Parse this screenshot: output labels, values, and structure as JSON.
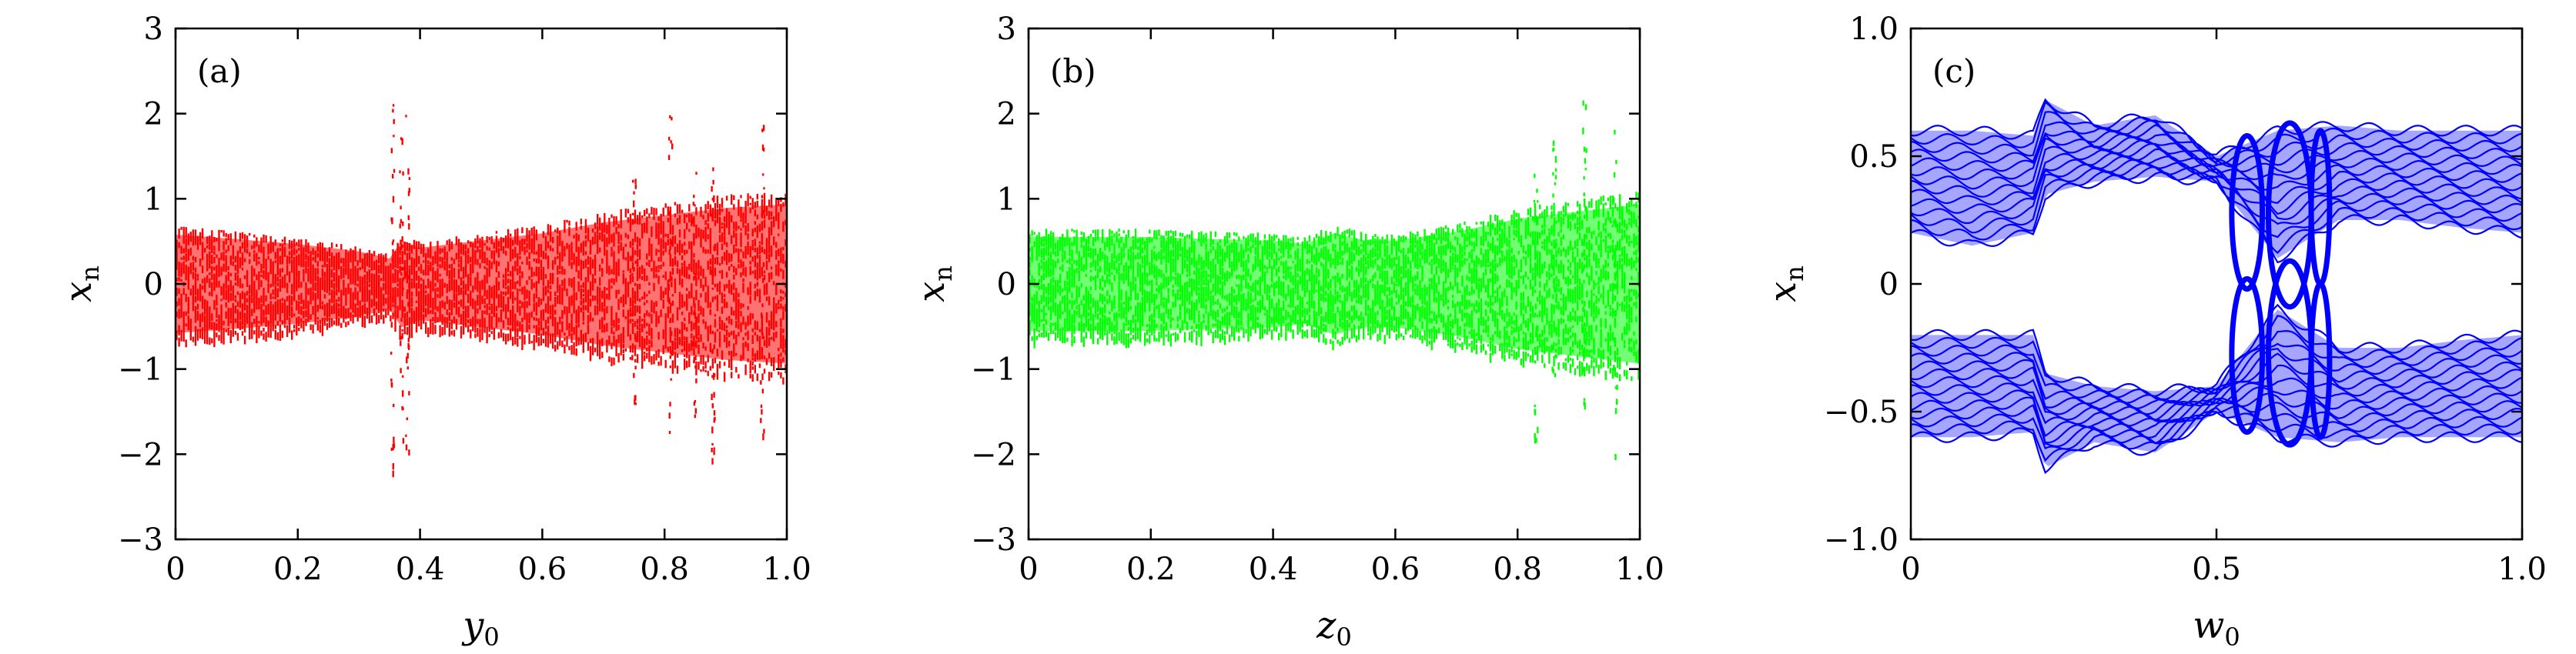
{
  "chart_data": [
    {
      "type": "scatter",
      "panel_label": "(a)",
      "xlabel": "y",
      "xlabel_sub": "0",
      "ylabel": "x",
      "ylabel_sub": "n",
      "xlim": [
        0,
        1.0
      ],
      "ylim": [
        -3,
        3
      ],
      "xticks": [
        0,
        0.2,
        0.4,
        0.6,
        0.8,
        1.0
      ],
      "xtick_labels": [
        "0",
        "0.2",
        "0.4",
        "0.6",
        "0.8",
        "1.0"
      ],
      "yticks": [
        -3,
        -2,
        -1,
        0,
        1,
        2,
        3
      ],
      "ytick_labels": [
        "−3",
        "−2",
        "−1",
        "0",
        "1",
        "2",
        "3"
      ],
      "color": "#ff0000",
      "grid": false,
      "envelope": {
        "x": [
          0,
          0.1,
          0.2,
          0.3,
          0.35,
          0.37,
          0.4,
          0.5,
          0.6,
          0.7,
          0.8,
          0.9,
          1.0
        ],
        "upper": [
          0.68,
          0.62,
          0.55,
          0.45,
          0.35,
          0.6,
          0.5,
          0.6,
          0.7,
          0.85,
          0.95,
          1.05,
          1.1
        ],
        "lower": [
          -0.68,
          -0.62,
          -0.55,
          -0.45,
          -0.35,
          -0.6,
          -0.5,
          -0.6,
          -0.7,
          -0.85,
          -0.95,
          -1.05,
          -1.1
        ]
      },
      "outliers": [
        {
          "x": 0.355,
          "y_min": -2.2,
          "y_max": 2.2
        },
        {
          "x": 0.37,
          "y_min": -2.1,
          "y_max": 2.0
        },
        {
          "x": 0.38,
          "y_min": -2.1,
          "y_max": 2.15
        },
        {
          "x": 0.75,
          "y_min": -1.5,
          "y_max": 1.3
        },
        {
          "x": 0.81,
          "y_min": -2.05,
          "y_max": 2.05
        },
        {
          "x": 0.85,
          "y_min": -1.6,
          "y_max": 1.7
        },
        {
          "x": 0.88,
          "y_min": -2.1,
          "y_max": 2.0
        },
        {
          "x": 0.96,
          "y_min": -2.1,
          "y_max": 2.0
        }
      ]
    },
    {
      "type": "scatter",
      "panel_label": "(b)",
      "xlabel": "z",
      "xlabel_sub": "0",
      "ylabel": "x",
      "ylabel_sub": "n",
      "xlim": [
        0,
        1.0
      ],
      "ylim": [
        -3,
        3
      ],
      "xticks": [
        0,
        0.2,
        0.4,
        0.6,
        0.8,
        1.0
      ],
      "xtick_labels": [
        "0",
        "0.2",
        "0.4",
        "0.6",
        "0.8",
        "1.0"
      ],
      "yticks": [
        -3,
        -2,
        -1,
        0,
        1,
        2,
        3
      ],
      "ytick_labels": [
        "−3",
        "−2",
        "−1",
        "0",
        "1",
        "2",
        "3"
      ],
      "color": "#00ff00",
      "grid": false,
      "envelope": {
        "x": [
          0,
          0.1,
          0.2,
          0.3,
          0.4,
          0.45,
          0.5,
          0.55,
          0.6,
          0.7,
          0.8,
          0.9,
          1.0
        ],
        "upper": [
          0.65,
          0.65,
          0.65,
          0.62,
          0.6,
          0.55,
          0.7,
          0.6,
          0.6,
          0.72,
          0.9,
          1.0,
          1.1
        ],
        "lower": [
          -0.65,
          -0.65,
          -0.65,
          -0.62,
          -0.6,
          -0.55,
          -0.7,
          -0.6,
          -0.6,
          -0.72,
          -0.9,
          -1.0,
          -1.1
        ]
      },
      "outliers": [
        {
          "x": 0.83,
          "y_min": -2.05,
          "y_max": 1.3
        },
        {
          "x": 0.86,
          "y_min": -1.5,
          "y_max": 1.9
        },
        {
          "x": 0.91,
          "y_min": -2.2,
          "y_max": 2.25
        },
        {
          "x": 0.96,
          "y_min": -2.0,
          "y_max": 2.1
        }
      ]
    },
    {
      "type": "scatter",
      "panel_label": "(c)",
      "xlabel": "w",
      "xlabel_sub": "0",
      "ylabel": "x",
      "ylabel_sub": "n",
      "xlim": [
        0,
        1.0
      ],
      "ylim": [
        -1.0,
        1.0
      ],
      "xticks": [
        0,
        0.5,
        1.0
      ],
      "xtick_labels": [
        "0",
        "0.5",
        "1.0"
      ],
      "yticks": [
        -1.0,
        -0.5,
        0,
        0.5,
        1.0
      ],
      "ytick_labels": [
        "−1.0",
        "−0.5",
        "0",
        "0.5",
        "1.0"
      ],
      "color": "#0000ff",
      "grid": false,
      "bands": [
        {
          "x": [
            0,
            0.1,
            0.2,
            0.22,
            0.3,
            0.4,
            0.5,
            0.6,
            0.7,
            0.8,
            0.9,
            1.0
          ],
          "upper": [
            0.6,
            0.6,
            0.58,
            0.72,
            0.62,
            0.66,
            0.5,
            0.6,
            0.62,
            0.6,
            0.6,
            0.6
          ],
          "lower": [
            0.2,
            0.15,
            0.2,
            0.35,
            0.4,
            0.42,
            0.4,
            0.1,
            0.25,
            0.25,
            0.22,
            0.2
          ]
        },
        {
          "x": [
            0,
            0.1,
            0.2,
            0.22,
            0.3,
            0.4,
            0.5,
            0.6,
            0.7,
            0.8,
            0.9,
            1.0
          ],
          "upper": [
            -0.2,
            -0.2,
            -0.2,
            -0.35,
            -0.4,
            -0.42,
            -0.4,
            -0.1,
            -0.25,
            -0.25,
            -0.22,
            -0.2
          ],
          "lower": [
            -0.6,
            -0.6,
            -0.58,
            -0.72,
            -0.62,
            -0.66,
            -0.5,
            -0.6,
            -0.62,
            -0.6,
            -0.6,
            -0.6
          ]
        }
      ],
      "ellipses": [
        {
          "cx": 0.55,
          "cy": 0.28,
          "rx": 0.025,
          "ry": 0.3
        },
        {
          "cx": 0.62,
          "cy": 0.27,
          "rx": 0.035,
          "ry": 0.36
        },
        {
          "cx": 0.67,
          "cy": 0.3,
          "rx": 0.015,
          "ry": 0.3
        },
        {
          "cx": 0.55,
          "cy": -0.28,
          "rx": 0.025,
          "ry": 0.3
        },
        {
          "cx": 0.62,
          "cy": -0.27,
          "rx": 0.035,
          "ry": 0.36
        },
        {
          "cx": 0.67,
          "cy": -0.3,
          "rx": 0.015,
          "ry": 0.3
        }
      ]
    }
  ]
}
